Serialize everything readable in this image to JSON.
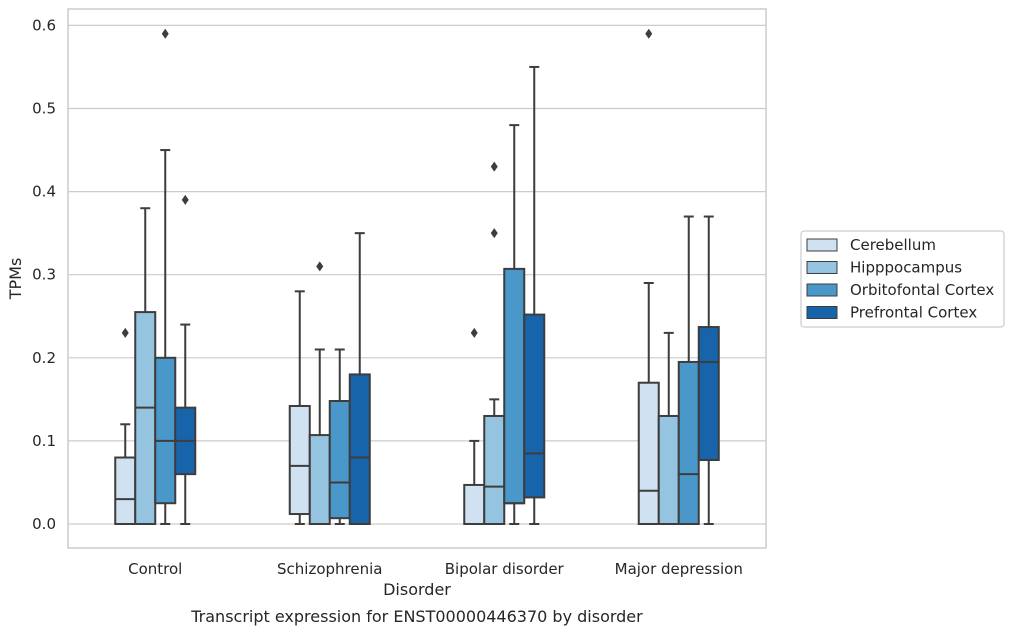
{
  "caption": "Transcript expression for ENST00000446370 by disorder",
  "chart_data": {
    "type": "box",
    "xlabel": "Disorder",
    "ylabel": "TPMs",
    "categories": [
      "Control",
      "Schizophrenia",
      "Bipolar disorder",
      "Major depression"
    ],
    "ylim": [
      -0.028,
      0.62
    ],
    "yticks": [
      "0.0",
      "0.1",
      "0.2",
      "0.3",
      "0.4",
      "0.5",
      "0.6"
    ],
    "ytick_values": [
      0,
      0.1,
      0.2,
      0.3,
      0.4,
      0.5,
      0.6
    ],
    "grid": true,
    "legend_position": "right",
    "series": [
      {
        "name": "Cerebellum",
        "color": "#d0e1f2",
        "boxes": [
          {
            "min": 0.0,
            "q1": 0.0,
            "median": 0.03,
            "q3": 0.08,
            "max": 0.12,
            "outliers": [
              0.23
            ]
          },
          {
            "min": 0.0,
            "q1": 0.012,
            "median": 0.07,
            "q3": 0.142,
            "max": 0.28,
            "outliers": []
          },
          {
            "min": 0.0,
            "q1": 0.0,
            "median": 0.0,
            "q3": 0.047,
            "max": 0.1,
            "outliers": [
              0.23
            ]
          },
          {
            "min": 0.0,
            "q1": 0.0,
            "median": 0.04,
            "q3": 0.17,
            "max": 0.29,
            "outliers": [
              0.59
            ]
          }
        ]
      },
      {
        "name": "Hipppocampus",
        "color": "#94c4df",
        "boxes": [
          {
            "min": 0.0,
            "q1": 0.0,
            "median": 0.14,
            "q3": 0.255,
            "max": 0.38,
            "outliers": []
          },
          {
            "min": 0.0,
            "q1": 0.0,
            "median": 0.0,
            "q3": 0.107,
            "max": 0.21,
            "outliers": [
              0.31
            ]
          },
          {
            "min": 0.0,
            "q1": 0.0,
            "median": 0.045,
            "q3": 0.13,
            "max": 0.15,
            "outliers": [
              0.35,
              0.43
            ]
          },
          {
            "min": 0.0,
            "q1": 0.0,
            "median": 0.0,
            "q3": 0.13,
            "max": 0.23,
            "outliers": []
          }
        ]
      },
      {
        "name": "Orbitofontal Cortex",
        "color": "#4a98c9",
        "boxes": [
          {
            "min": 0.0,
            "q1": 0.025,
            "median": 0.1,
            "q3": 0.2,
            "max": 0.45,
            "outliers": [
              0.59
            ]
          },
          {
            "min": 0.0,
            "q1": 0.007,
            "median": 0.05,
            "q3": 0.148,
            "max": 0.21,
            "outliers": []
          },
          {
            "min": 0.0,
            "q1": 0.025,
            "median": 0.025,
            "q3": 0.307,
            "max": 0.48,
            "outliers": []
          },
          {
            "min": 0.0,
            "q1": 0.0,
            "median": 0.06,
            "q3": 0.195,
            "max": 0.37,
            "outliers": []
          }
        ]
      },
      {
        "name": "Prefrontal Cortex",
        "color": "#1764ab",
        "boxes": [
          {
            "min": 0.0,
            "q1": 0.06,
            "median": 0.1,
            "q3": 0.14,
            "max": 0.24,
            "outliers": [
              0.39
            ]
          },
          {
            "min": 0.0,
            "q1": 0.0,
            "median": 0.08,
            "q3": 0.18,
            "max": 0.35,
            "outliers": []
          },
          {
            "min": 0.0,
            "q1": 0.032,
            "median": 0.085,
            "q3": 0.252,
            "max": 0.55,
            "outliers": []
          },
          {
            "min": 0.0,
            "q1": 0.077,
            "median": 0.195,
            "q3": 0.237,
            "max": 0.37,
            "outliers": []
          }
        ]
      }
    ]
  }
}
